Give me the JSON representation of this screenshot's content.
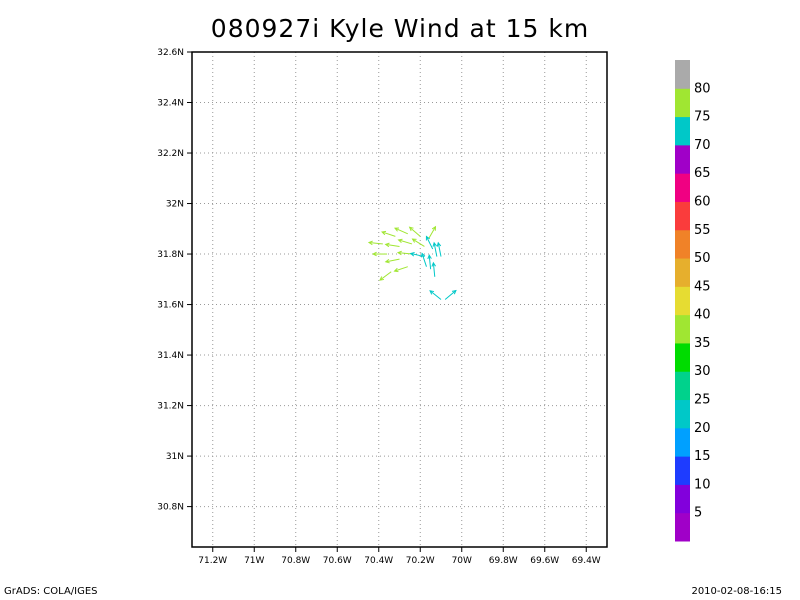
{
  "chart_data": {
    "type": "vector",
    "title": "080927i Kyle Wind at 15 km",
    "xlabel": "",
    "ylabel": "",
    "xlim": [
      -71.3,
      -69.3
    ],
    "ylim": [
      30.64,
      32.6
    ],
    "x_ticks": [
      {
        "value": -71.2,
        "label": "71.2W"
      },
      {
        "value": -71.0,
        "label": "71W"
      },
      {
        "value": -70.8,
        "label": "70.8W"
      },
      {
        "value": -70.6,
        "label": "70.6W"
      },
      {
        "value": -70.4,
        "label": "70.4W"
      },
      {
        "value": -70.2,
        "label": "70.2W"
      },
      {
        "value": -70.0,
        "label": "70W"
      },
      {
        "value": -69.8,
        "label": "69.8W"
      },
      {
        "value": -69.6,
        "label": "69.6W"
      },
      {
        "value": -69.4,
        "label": "69.4W"
      }
    ],
    "y_ticks": [
      {
        "value": 30.8,
        "label": "30.8N"
      },
      {
        "value": 31.0,
        "label": "31N"
      },
      {
        "value": 31.2,
        "label": "31.2N"
      },
      {
        "value": 31.4,
        "label": "31.4N"
      },
      {
        "value": 31.6,
        "label": "31.6N"
      },
      {
        "value": 31.8,
        "label": "31.8N"
      },
      {
        "value": 32.0,
        "label": "32N"
      },
      {
        "value": 32.2,
        "label": "32.2N"
      },
      {
        "value": 32.4,
        "label": "32.4N"
      },
      {
        "value": 32.6,
        "label": "32.6N"
      }
    ],
    "grid": true,
    "colorbar": {
      "colors": [
        "#a000c8",
        "#8200dc",
        "#1e3cff",
        "#00a0ff",
        "#00c8c8",
        "#00d28c",
        "#00dc00",
        "#a0e632",
        "#e6dc32",
        "#e6af2d",
        "#f08228",
        "#fa3c3c",
        "#f00082",
        "#a000c8",
        "#00c8c8",
        "#a0e632",
        "#aaaaaa"
      ],
      "labels": [
        "5",
        "10",
        "15",
        "20",
        "25",
        "30",
        "35",
        "40",
        "45",
        "50",
        "55",
        "60",
        "65",
        "70",
        "75",
        "80"
      ]
    },
    "vectors": [
      {
        "lon": -70.38,
        "lat": 31.84,
        "u": -1.0,
        "v": 0.1,
        "speed": 75
      },
      {
        "lon": -70.36,
        "lat": 31.8,
        "u": -1.0,
        "v": 0.0,
        "speed": 75
      },
      {
        "lon": -70.32,
        "lat": 31.87,
        "u": -0.9,
        "v": 0.3,
        "speed": 75
      },
      {
        "lon": -70.3,
        "lat": 31.83,
        "u": -1.0,
        "v": 0.15,
        "speed": 75
      },
      {
        "lon": -70.3,
        "lat": 31.78,
        "u": -1.0,
        "v": -0.2,
        "speed": 75
      },
      {
        "lon": -70.34,
        "lat": 31.73,
        "u": -0.8,
        "v": -0.6,
        "speed": 75
      },
      {
        "lon": -70.26,
        "lat": 31.88,
        "u": -0.9,
        "v": 0.4,
        "speed": 75
      },
      {
        "lon": -70.24,
        "lat": 31.84,
        "u": -1.0,
        "v": 0.3,
        "speed": 75
      },
      {
        "lon": -70.24,
        "lat": 31.8,
        "u": -1.0,
        "v": 0.1,
        "speed": 75
      },
      {
        "lon": -70.26,
        "lat": 31.75,
        "u": -0.9,
        "v": -0.3,
        "speed": 75
      },
      {
        "lon": -70.2,
        "lat": 31.87,
        "u": -0.7,
        "v": 0.6,
        "speed": 75
      },
      {
        "lon": -70.18,
        "lat": 31.83,
        "u": -0.8,
        "v": 0.5,
        "speed": 75
      },
      {
        "lon": -70.18,
        "lat": 31.79,
        "u": -0.9,
        "v": 0.2,
        "speed": 70
      },
      {
        "lon": -70.16,
        "lat": 31.86,
        "u": 0.4,
        "v": 0.7,
        "speed": 75
      },
      {
        "lon": -70.14,
        "lat": 31.82,
        "u": -0.4,
        "v": 0.8,
        "speed": 70
      },
      {
        "lon": -70.17,
        "lat": 31.75,
        "u": -0.3,
        "v": 0.9,
        "speed": 70
      },
      {
        "lon": -70.15,
        "lat": 31.74,
        "u": -0.1,
        "v": 1.0,
        "speed": 70
      },
      {
        "lon": -70.12,
        "lat": 31.79,
        "u": -0.2,
        "v": 1.0,
        "speed": 70
      },
      {
        "lon": -70.1,
        "lat": 31.79,
        "u": -0.2,
        "v": 1.0,
        "speed": 70
      },
      {
        "lon": -70.13,
        "lat": 31.71,
        "u": -0.1,
        "v": 1.0,
        "speed": 70
      },
      {
        "lon": -70.08,
        "lat": 31.62,
        "u": 0.6,
        "v": 0.5,
        "speed": 70
      },
      {
        "lon": -70.1,
        "lat": 31.62,
        "u": -0.5,
        "v": 0.4,
        "speed": 70
      }
    ]
  },
  "footer": {
    "left": "GrADS: COLA/IGES",
    "right": "2010-02-08-16:15"
  }
}
